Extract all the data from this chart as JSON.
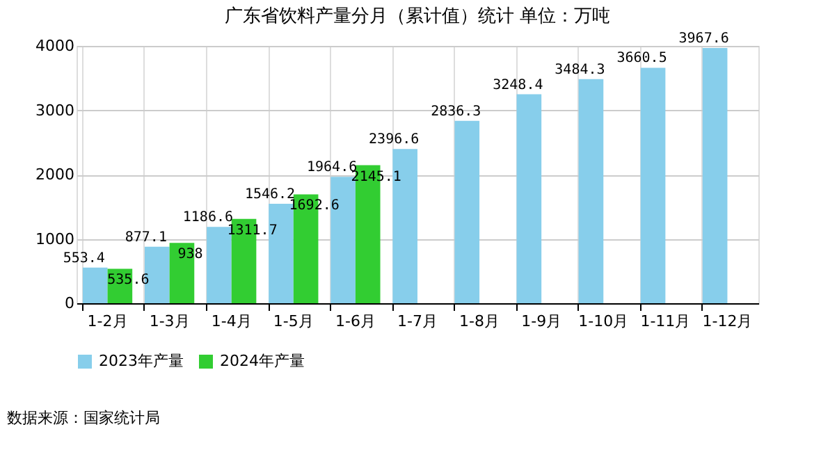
{
  "chart_data": {
    "type": "bar",
    "title": "广东省饮料产量分月（累计值）统计 单位：万吨",
    "categories": [
      "1-2月",
      "1-3月",
      "1-4月",
      "1-5月",
      "1-6月",
      "1-7月",
      "1-8月",
      "1-9月",
      "1-10月",
      "1-11月",
      "1-12月"
    ],
    "series": [
      {
        "name": "2023年产量",
        "color": "#87ceeb",
        "values": [
          553.4,
          877.1,
          1186.6,
          1546.2,
          1964.6,
          2396.6,
          2836.3,
          3248.4,
          3484.3,
          3660.5,
          3967.6
        ]
      },
      {
        "name": "2024年产量",
        "color": "#32cd32",
        "values": [
          535.6,
          938,
          1311.7,
          1692.6,
          2145.1,
          null,
          null,
          null,
          null,
          null,
          null
        ]
      }
    ],
    "ylim": [
      0,
      4000
    ],
    "yticks": [
      0,
      1000,
      2000,
      3000,
      4000
    ],
    "grid": true,
    "legend": "bottom",
    "data_labels": true,
    "annotations": [
      "数据来源：国家统计局"
    ]
  }
}
